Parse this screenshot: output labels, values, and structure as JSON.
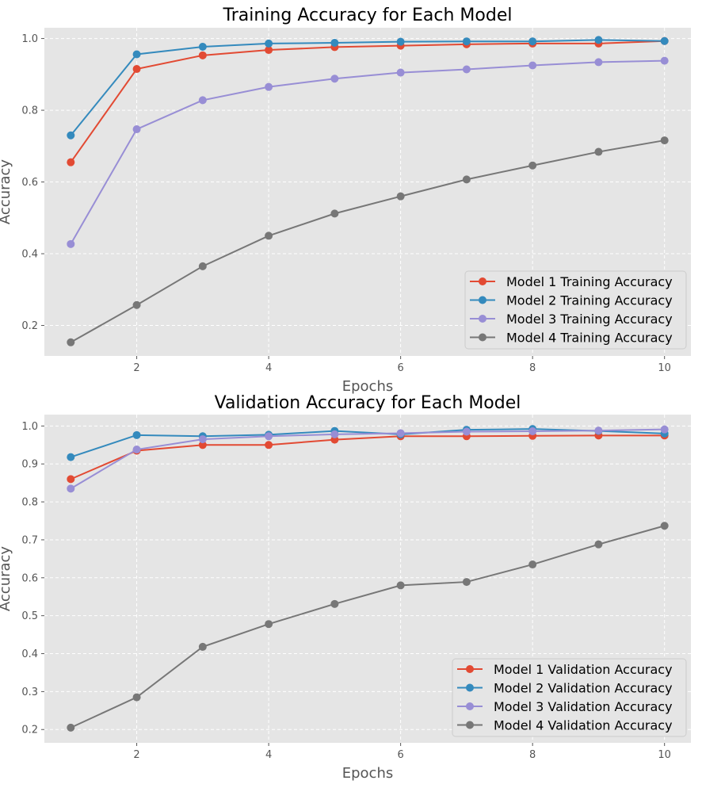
{
  "chart_data": [
    {
      "type": "line",
      "title": "Training Accuracy for Each Model",
      "xlabel": "Epochs",
      "ylabel": "Accuracy",
      "xlim": [
        0.6,
        10.4
      ],
      "ylim": [
        0.115,
        1.03
      ],
      "x_ticks": [
        2,
        4,
        6,
        8,
        10
      ],
      "y_ticks": [
        0.2,
        0.4,
        0.6,
        0.8,
        1.0
      ],
      "x_tick_labels": [
        "2",
        "4",
        "6",
        "8",
        "10"
      ],
      "y_tick_labels": [
        "0.2",
        "0.4",
        "0.6",
        "0.8",
        "1.0"
      ],
      "grid": true,
      "legend_position": "bottom-right",
      "x": [
        1,
        2,
        3,
        4,
        5,
        6,
        7,
        8,
        9,
        10
      ],
      "series": [
        {
          "name": "Model 1 Training Accuracy",
          "color": "#E24A33",
          "values": [
            0.655,
            0.915,
            0.953,
            0.968,
            0.976,
            0.98,
            0.984,
            0.986,
            0.986,
            0.993
          ]
        },
        {
          "name": "Model 2 Training Accuracy",
          "color": "#348ABD",
          "values": [
            0.73,
            0.956,
            0.977,
            0.986,
            0.988,
            0.991,
            0.992,
            0.992,
            0.996,
            0.993
          ]
        },
        {
          "name": "Model 3 Training Accuracy",
          "color": "#988ED5",
          "values": [
            0.427,
            0.747,
            0.828,
            0.865,
            0.888,
            0.905,
            0.914,
            0.925,
            0.934,
            0.938
          ]
        },
        {
          "name": "Model 4 Training Accuracy",
          "color": "#777777",
          "values": [
            0.153,
            0.257,
            0.365,
            0.45,
            0.512,
            0.56,
            0.607,
            0.646,
            0.684,
            0.716
          ]
        }
      ]
    },
    {
      "type": "line",
      "title": "Validation Accuracy for Each Model",
      "xlabel": "Epochs",
      "ylabel": "Accuracy",
      "xlim": [
        0.6,
        10.4
      ],
      "ylim": [
        0.165,
        1.03
      ],
      "x_ticks": [
        2,
        4,
        6,
        8,
        10
      ],
      "y_ticks": [
        0.2,
        0.3,
        0.4,
        0.5,
        0.6,
        0.7,
        0.8,
        0.9,
        1.0
      ],
      "x_tick_labels": [
        "2",
        "4",
        "6",
        "8",
        "10"
      ],
      "y_tick_labels": [
        "0.2",
        "0.3",
        "0.4",
        "0.5",
        "0.6",
        "0.7",
        "0.8",
        "0.9",
        "1.0"
      ],
      "grid": true,
      "legend_position": "bottom-right",
      "x": [
        1,
        2,
        3,
        4,
        5,
        6,
        7,
        8,
        9,
        10
      ],
      "series": [
        {
          "name": "Model 1 Validation Accuracy",
          "color": "#E24A33",
          "values": [
            0.86,
            0.935,
            0.95,
            0.95,
            0.964,
            0.973,
            0.973,
            0.974,
            0.975,
            0.975
          ]
        },
        {
          "name": "Model 2 Validation Accuracy",
          "color": "#348ABD",
          "values": [
            0.918,
            0.976,
            0.973,
            0.977,
            0.987,
            0.978,
            0.99,
            0.992,
            0.987,
            0.98
          ]
        },
        {
          "name": "Model 3 Validation Accuracy",
          "color": "#988ED5",
          "values": [
            0.835,
            0.938,
            0.965,
            0.973,
            0.978,
            0.981,
            0.985,
            0.986,
            0.988,
            0.991
          ]
        },
        {
          "name": "Model 4 Validation Accuracy",
          "color": "#777777",
          "values": [
            0.205,
            0.285,
            0.418,
            0.478,
            0.531,
            0.58,
            0.589,
            0.635,
            0.688,
            0.737
          ]
        }
      ]
    }
  ]
}
